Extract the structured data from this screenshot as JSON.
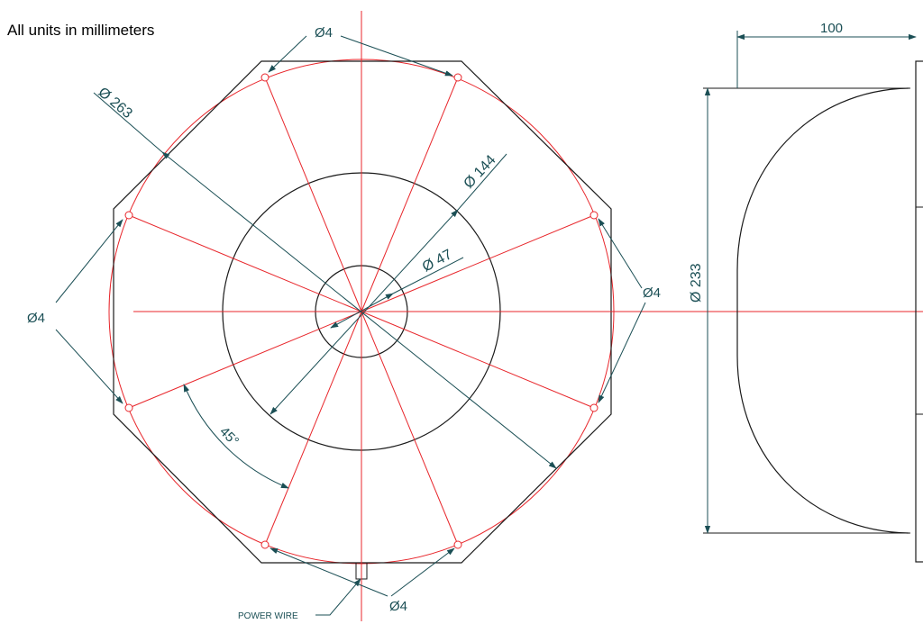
{
  "note": "All units in millimeters",
  "labels": {
    "dia_263": "Ø 263",
    "dia_144": "Ø 144",
    "dia_47": "Ø 47",
    "dia_233": "Ø 233",
    "depth_100": "100",
    "angle": "45°",
    "hole": "Ø4",
    "power_wire": "POWER WIRE"
  },
  "colors": {
    "outline": "#1a1a1a",
    "centerline": "#e8262b",
    "dimension": "#1b4f55"
  }
}
